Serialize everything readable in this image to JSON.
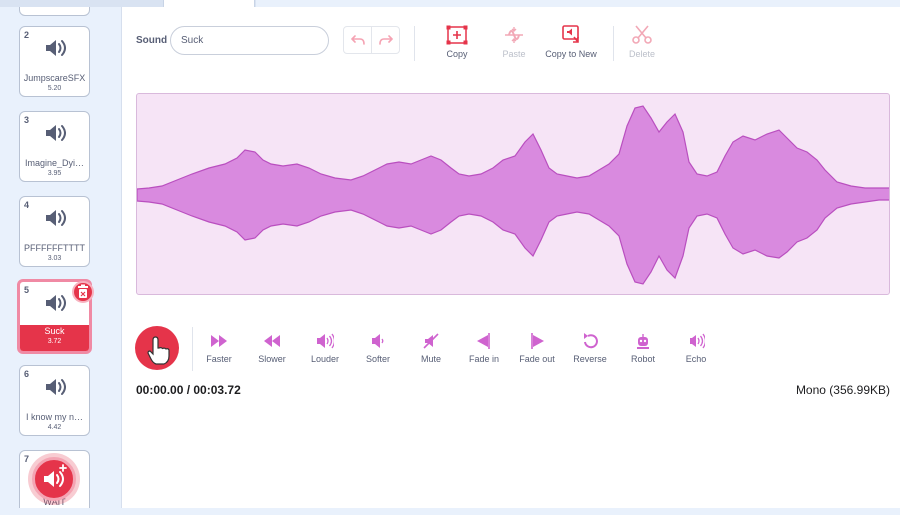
{
  "sidebar": {
    "tiles": [
      {
        "number": "2",
        "name": "JumpscareSFX",
        "duration": "5.20"
      },
      {
        "number": "3",
        "name": "Imagine_Dyi…",
        "duration": "3.95"
      },
      {
        "number": "4",
        "name": "PFFFFFFTTTT",
        "duration": "3.03"
      },
      {
        "number": "5",
        "name": "Suck",
        "duration": "3.72"
      },
      {
        "number": "6",
        "name": "I know my n…",
        "duration": "4.42"
      },
      {
        "number": "7",
        "name": "WAIT",
        "duration": ""
      }
    ],
    "selected_index": 3
  },
  "editor": {
    "sound_label": "Sound",
    "sound_name": "Suck",
    "tools": {
      "copy": "Copy",
      "paste": "Paste",
      "copy_to_new": "Copy to New",
      "delete": "Delete"
    },
    "effects": [
      "Faster",
      "Slower",
      "Louder",
      "Softer",
      "Mute",
      "Fade in",
      "Fade out",
      "Reverse",
      "Robot",
      "Echo"
    ],
    "time_readout": "00:00.00 / 00:03.72",
    "format_info": "Mono (356.99KB)"
  },
  "colors": {
    "accent": "#e5344a",
    "effect_icon": "#cf63cf",
    "wave_fill": "#d98adf",
    "wave_bg": "#f6e4f6",
    "text": "#575e75"
  },
  "icons": {
    "tile": "speaker-icon",
    "delete_tile": "trash-icon",
    "add": "add-sound-icon",
    "play": "hand-pointer-icon"
  }
}
